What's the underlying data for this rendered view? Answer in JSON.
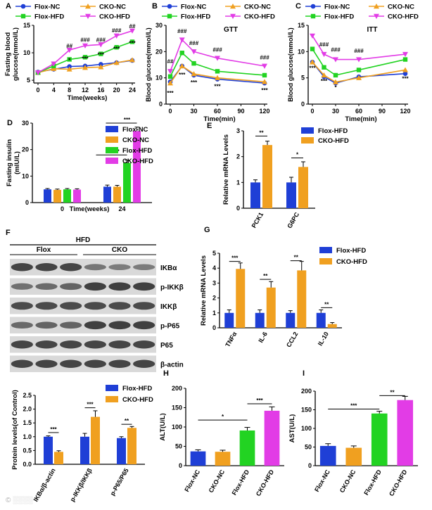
{
  "colors": {
    "flox_nc": "#1f3fd6",
    "cko_nc": "#f0a020",
    "flox_hfd": "#22d322",
    "cko_hfd": "#e23ce6",
    "blot_dark": "#2a2a2a",
    "blot_bg": "#d9d9d9"
  },
  "watermark": "© ░░░░",
  "chart_data": [
    {
      "id": "A",
      "panel_label": "A",
      "type": "line",
      "xlabel": "Time(weeks)",
      "ylabel": "Fasting blood glucose(mmol/L)",
      "x": [
        0,
        4,
        8,
        12,
        16,
        20,
        24
      ],
      "xlim": [
        0,
        24
      ],
      "ylim": [
        4.5,
        15
      ],
      "xticks": [
        "0",
        "4",
        "8",
        "12",
        "16",
        "20",
        "24"
      ],
      "yticks": [
        "5",
        "10",
        "15"
      ],
      "legend": [
        "Flox-NC",
        "CKO-NC",
        "Flox-HFD",
        "CKO-HFD"
      ],
      "series": [
        {
          "name": "Flox-NC",
          "color_key": "flox_nc",
          "marker": "circle",
          "values": [
            6.5,
            7.0,
            7.5,
            7.6,
            7.9,
            8.2,
            8.6
          ]
        },
        {
          "name": "CKO-NC",
          "color_key": "cko_nc",
          "marker": "triangle",
          "values": [
            6.4,
            7.1,
            7.0,
            7.3,
            7.4,
            8.2,
            8.7
          ]
        },
        {
          "name": "Flox-HFD",
          "color_key": "flox_hfd",
          "marker": "square",
          "values": [
            6.4,
            7.6,
            8.8,
            9.2,
            9.8,
            11.0,
            12.0
          ]
        },
        {
          "name": "CKO-HFD",
          "color_key": "cko_hfd",
          "marker": "tri_down",
          "values": [
            6.4,
            8.0,
            10.5,
            11.3,
            11.5,
            13.1,
            14.0
          ]
        }
      ],
      "annotations": [
        {
          "x": 8,
          "y": 10.9,
          "text": "##"
        },
        {
          "x": 12,
          "y": 12.0,
          "text": "###"
        },
        {
          "x": 16,
          "y": 12.0,
          "text": "###"
        },
        {
          "x": 20,
          "y": 13.7,
          "text": "###"
        },
        {
          "x": 24,
          "y": 14.5,
          "text": "##"
        },
        {
          "x": 8,
          "y": 8.3,
          "text": "*"
        },
        {
          "x": 12,
          "y": 8.6,
          "text": "***"
        },
        {
          "x": 16,
          "y": 9.3,
          "text": "***"
        },
        {
          "x": 20,
          "y": 10.4,
          "text": "***"
        },
        {
          "x": 24,
          "y": 11.4,
          "text": "***"
        }
      ]
    },
    {
      "id": "B",
      "panel_label": "B",
      "type": "line",
      "title": "GTT",
      "xlabel": "Time(min)",
      "ylabel": "Blood glucose(mmol/L)",
      "x": [
        0,
        15,
        30,
        60,
        120
      ],
      "xlim": [
        0,
        120
      ],
      "ylim": [
        0,
        30
      ],
      "xticks": [
        "0",
        "30",
        "60",
        "90",
        "120"
      ],
      "yticks": [
        "0",
        "10",
        "20",
        "30"
      ],
      "legend": [
        "Flox-NC",
        "CKO-NC",
        "Flox-HFD",
        "CKO-HFD"
      ],
      "series": [
        {
          "name": "Flox-NC",
          "color_key": "flox_nc",
          "marker": "circle",
          "values": [
            8.5,
            14.5,
            11.0,
            9.5,
            8.0
          ]
        },
        {
          "name": "CKO-NC",
          "color_key": "cko_nc",
          "marker": "triangle",
          "values": [
            8.0,
            14.5,
            11.5,
            10.0,
            8.5
          ]
        },
        {
          "name": "Flox-HFD",
          "color_key": "flox_hfd",
          "marker": "square",
          "values": [
            10.5,
            19.5,
            15.5,
            12.5,
            11.0
          ]
        },
        {
          "name": "CKO-HFD",
          "color_key": "cko_hfd",
          "marker": "tri_down",
          "values": [
            12.5,
            24.5,
            20.0,
            17.5,
            14.5
          ]
        }
      ],
      "annotations": [
        {
          "x": 0,
          "y": 15.5,
          "text": "##"
        },
        {
          "x": 15,
          "y": 27,
          "text": "###"
        },
        {
          "x": 30,
          "y": 22.5,
          "text": "###"
        },
        {
          "x": 60,
          "y": 20,
          "text": "###"
        },
        {
          "x": 120,
          "y": 17,
          "text": "###"
        },
        {
          "x": 0,
          "y": 3.5,
          "text": "***"
        },
        {
          "x": 15,
          "y": 10.5,
          "text": "***"
        },
        {
          "x": 30,
          "y": 7.5,
          "text": "***"
        },
        {
          "x": 60,
          "y": 6,
          "text": "***"
        },
        {
          "x": 120,
          "y": 4.5,
          "text": "***"
        }
      ]
    },
    {
      "id": "C",
      "panel_label": "C",
      "type": "line",
      "title": "ITT",
      "xlabel": "Time(min)",
      "ylabel": "Blood glucose(mmol/L)",
      "x": [
        0,
        15,
        30,
        60,
        120
      ],
      "xlim": [
        0,
        120
      ],
      "ylim": [
        0,
        15
      ],
      "xticks": [
        "0",
        "30",
        "60",
        "90",
        "120"
      ],
      "yticks": [
        "0",
        "5",
        "10",
        "15"
      ],
      "legend": [
        "Flox-NC",
        "CKO-NC",
        "Flox-HFD",
        "CKO-HFD"
      ],
      "series": [
        {
          "name": "Flox-NC",
          "color_key": "flox_nc",
          "marker": "circle",
          "values": [
            8.0,
            5.2,
            4.0,
            5.2,
            5.8
          ]
        },
        {
          "name": "CKO-NC",
          "color_key": "cko_nc",
          "marker": "triangle",
          "values": [
            8.0,
            5.5,
            4.2,
            5.0,
            6.5
          ]
        },
        {
          "name": "Flox-HFD",
          "color_key": "flox_hfd",
          "marker": "square",
          "values": [
            10.5,
            7.0,
            5.5,
            6.5,
            8.5
          ]
        },
        {
          "name": "CKO-HFD",
          "color_key": "cko_hfd",
          "marker": "tri_down",
          "values": [
            13.0,
            9.5,
            8.5,
            8.5,
            9.5
          ]
        }
      ],
      "annotations": [
        {
          "x": 15,
          "y": 11.0,
          "text": "###"
        },
        {
          "x": 30,
          "y": 10.0,
          "text": "###"
        },
        {
          "x": 60,
          "y": 9.8,
          "text": "###"
        },
        {
          "x": 0,
          "y": 6.5,
          "text": "***"
        },
        {
          "x": 15,
          "y": 4.0,
          "text": "***"
        },
        {
          "x": 30,
          "y": 2.8,
          "text": "*"
        },
        {
          "x": 120,
          "y": 4.5,
          "text": "***"
        }
      ]
    },
    {
      "id": "D",
      "panel_label": "D",
      "type": "bar",
      "ylabel": "Fasting insulin (mIU/L)",
      "xlabel": "Time(weeks)",
      "categories": [
        "0",
        "24"
      ],
      "ylim": [
        0,
        30
      ],
      "yticks": [
        "0",
        "10",
        "20",
        "30"
      ],
      "legend": [
        "Flox-NC",
        "CKO-NC",
        "Flox-HFD",
        "CKO-HFD"
      ],
      "series": [
        {
          "name": "Flox-NC",
          "color_key": "flox_nc",
          "values": [
            5.0,
            6.0
          ],
          "errors": [
            0.3,
            0.6
          ]
        },
        {
          "name": "CKO-NC",
          "color_key": "cko_nc",
          "values": [
            4.8,
            6.0
          ],
          "errors": [
            0.3,
            0.5
          ]
        },
        {
          "name": "Flox-HFD",
          "color_key": "flox_hfd",
          "values": [
            5.0,
            15.0
          ],
          "errors": [
            0.3,
            1.0
          ]
        },
        {
          "name": "CKO-HFD",
          "color_key": "cko_hfd",
          "values": [
            4.9,
            27.0
          ],
          "errors": [
            0.3,
            1.5
          ]
        }
      ],
      "brackets": [
        {
          "from_cat": 1,
          "from_series": 1,
          "to_cat": 1,
          "to_series": 2,
          "y": 18,
          "text": "**"
        },
        {
          "from_cat": 1,
          "from_series": 2,
          "to_cat": 1,
          "to_series": 3,
          "y": 30,
          "text": "***"
        }
      ]
    },
    {
      "id": "E",
      "panel_label": "E",
      "type": "bar",
      "ylabel": "Relative mRNA Levels",
      "categories": [
        "PCK1",
        "G6PC"
      ],
      "ylim": [
        0,
        3
      ],
      "yticks": [
        "0",
        "1",
        "2",
        "3"
      ],
      "legend": [
        "Flox-HFD",
        "CKO-HFD"
      ],
      "series": [
        {
          "name": "Flox-HFD",
          "color_key": "flox_nc",
          "values": [
            1.0,
            1.0
          ],
          "errors": [
            0.1,
            0.2
          ]
        },
        {
          "name": "CKO-HFD",
          "color_key": "cko_nc",
          "values": [
            2.45,
            1.6
          ],
          "errors": [
            0.15,
            0.2
          ]
        }
      ],
      "brackets": [
        {
          "cat": 0,
          "y": 2.8,
          "text": "**"
        },
        {
          "cat": 1,
          "y": 1.95,
          "text": "*"
        }
      ]
    },
    {
      "id": "G",
      "panel_label": "G",
      "type": "bar",
      "ylabel": "Relative mRNA Levels",
      "categories": [
        "TNFα",
        "IL-6",
        "CCL2",
        "IL-10"
      ],
      "ylim": [
        0,
        5
      ],
      "yticks": [
        "0",
        "1",
        "2",
        "3",
        "4",
        "5"
      ],
      "legend": [
        "Flox-HFD",
        "CKO-HFD"
      ],
      "series": [
        {
          "name": "Flox-HFD",
          "color_key": "flox_nc",
          "values": [
            1.0,
            1.0,
            1.0,
            1.0
          ],
          "errors": [
            0.2,
            0.2,
            0.15,
            0.2
          ]
        },
        {
          "name": "CKO-HFD",
          "color_key": "cko_nc",
          "values": [
            3.95,
            2.7,
            3.85,
            0.25
          ],
          "errors": [
            0.4,
            0.4,
            0.6,
            0.1
          ]
        }
      ],
      "brackets": [
        {
          "cat": 0,
          "y": 4.45,
          "text": "***"
        },
        {
          "cat": 1,
          "y": 3.25,
          "text": "**"
        },
        {
          "cat": 2,
          "y": 4.5,
          "text": "**"
        },
        {
          "cat": 3,
          "y": 1.35,
          "text": "**"
        }
      ]
    },
    {
      "id": "F",
      "panel_label": "",
      "type": "bar",
      "ylabel": "Protein levels(of Control)",
      "categories": [
        "IKBα/β-actin",
        "p-IKKβ/IKKβ",
        "p-P65/P65"
      ],
      "ylim": [
        0,
        2.5
      ],
      "yticks": [
        "0.0",
        "0.5",
        "1.0",
        "1.5",
        "2.0",
        "2.5"
      ],
      "legend": [
        "Flox-HFD",
        "CKO-HFD"
      ],
      "series": [
        {
          "name": "Flox-HFD",
          "color_key": "flox_nc",
          "values": [
            1.0,
            1.0,
            0.95
          ],
          "errors": [
            0.03,
            0.12,
            0.05
          ]
        },
        {
          "name": "CKO-HFD",
          "color_key": "cko_nc",
          "values": [
            0.45,
            1.72,
            1.32
          ],
          "errors": [
            0.04,
            0.22,
            0.05
          ]
        }
      ],
      "brackets": [
        {
          "cat": 0,
          "y": 1.15,
          "text": "***"
        },
        {
          "cat": 1,
          "y": 2.05,
          "text": "***"
        },
        {
          "cat": 2,
          "y": 1.45,
          "text": "**"
        }
      ]
    },
    {
      "id": "H",
      "panel_label": "H",
      "type": "bar",
      "ylabel": "ALT(U/L)",
      "categories": [
        "Flox-NC",
        "CKO-NC",
        "Flox-HFD",
        "CKO-HFD"
      ],
      "ylim": [
        0,
        200
      ],
      "yticks": [
        "0",
        "50",
        "100",
        "150",
        "200"
      ],
      "colors": [
        "flox_nc",
        "cko_nc",
        "flox_hfd",
        "cko_hfd"
      ],
      "values": [
        37,
        36,
        91,
        142
      ],
      "errors": [
        4,
        4,
        8,
        10
      ],
      "brackets": [
        {
          "from": 0,
          "to": 2,
          "y": 118,
          "text": "*"
        },
        {
          "from": 2,
          "to": 3,
          "y": 160,
          "text": "***"
        }
      ]
    },
    {
      "id": "I",
      "panel_label": "I",
      "type": "bar",
      "ylabel": "AST(U/L)",
      "categories": [
        "Flox-NC",
        "CKO-NC",
        "Flox-HFD",
        "CKO-HFD"
      ],
      "ylim": [
        0,
        200
      ],
      "yticks": [
        "0",
        "50",
        "100",
        "150",
        "200"
      ],
      "colors": [
        "flox_nc",
        "cko_nc",
        "flox_hfd",
        "cko_hfd"
      ],
      "values": [
        53,
        48,
        140,
        176
      ],
      "errors": [
        6,
        5,
        6,
        10
      ],
      "brackets": [
        {
          "from": 0,
          "to": 2,
          "y": 152,
          "text": "***"
        },
        {
          "from": 2,
          "to": 3,
          "y": 188,
          "text": "**"
        }
      ]
    }
  ],
  "blot": {
    "panel_label": "F",
    "group_title": "HFD",
    "groups": [
      "Flox",
      "CKO"
    ],
    "rows": [
      {
        "label": "IKBα",
        "intensity": [
          0.85,
          0.85,
          0.85,
          0.45,
          0.4,
          0.4
        ]
      },
      {
        "label": "p-IKKβ",
        "intensity": [
          0.5,
          0.55,
          0.6,
          0.9,
          0.9,
          0.9
        ]
      },
      {
        "label": "IKKβ",
        "intensity": [
          0.8,
          0.8,
          0.8,
          0.8,
          0.8,
          0.8
        ]
      },
      {
        "label": "p-P65",
        "intensity": [
          0.55,
          0.6,
          0.6,
          0.9,
          0.9,
          0.9
        ]
      },
      {
        "label": "P65",
        "intensity": [
          0.85,
          0.85,
          0.85,
          0.85,
          0.85,
          0.85
        ]
      },
      {
        "label": "β-actin",
        "intensity": [
          0.85,
          0.85,
          0.85,
          0.85,
          0.85,
          0.85
        ]
      }
    ]
  }
}
